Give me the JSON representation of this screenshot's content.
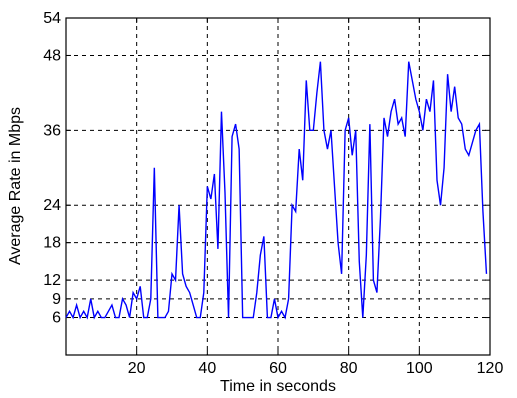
{
  "chart_data": {
    "type": "line",
    "xlabel": "Time in seconds",
    "ylabel": "Average Rate in Mbps",
    "xlim": [
      0,
      120
    ],
    "ylim": [
      0,
      54
    ],
    "xticks": [
      20,
      40,
      60,
      80,
      100,
      120
    ],
    "yticks": [
      6,
      9,
      12,
      18,
      24,
      36,
      48,
      54
    ],
    "grid": true,
    "grid_style": "dashed",
    "series_color": "#0000ff",
    "series": [
      {
        "x": [
          0,
          1,
          2,
          3,
          4,
          5,
          6,
          7,
          8,
          9,
          10,
          11,
          12,
          13,
          14,
          15,
          16,
          17,
          18,
          19,
          20,
          21,
          22,
          23,
          24,
          25,
          26,
          27,
          28,
          29,
          30,
          31,
          32,
          33,
          34,
          35,
          36,
          37,
          38,
          39,
          40,
          41,
          42,
          43,
          44,
          45,
          46,
          47,
          48,
          49,
          50,
          51,
          52,
          53,
          54,
          55,
          56,
          57,
          58,
          59,
          60,
          61,
          62,
          63,
          64,
          65,
          66,
          67,
          68,
          69,
          70,
          71,
          72,
          73,
          74,
          75,
          76,
          77,
          78,
          79,
          80,
          81,
          82,
          83,
          84,
          85,
          86,
          87,
          88,
          89,
          90,
          91,
          92,
          93,
          94,
          95,
          96,
          97,
          98,
          99,
          100,
          101,
          102,
          103,
          104,
          105,
          106,
          107,
          108,
          109,
          110,
          111,
          112,
          113,
          114,
          115,
          116,
          117,
          118,
          119
        ],
        "values": [
          6,
          7,
          6,
          8,
          6,
          7,
          6,
          9,
          6,
          7,
          6,
          6,
          7,
          8,
          6,
          6,
          9,
          8,
          6,
          10,
          9,
          11,
          6,
          6,
          9,
          30,
          6,
          6,
          6,
          7,
          13,
          12,
          24,
          13,
          11,
          10,
          8,
          6,
          6,
          10,
          27,
          25,
          29,
          17,
          39,
          26,
          6,
          35,
          37,
          33,
          6,
          6,
          6,
          6,
          10,
          16,
          19,
          6,
          6,
          9,
          6,
          7,
          6,
          9,
          24,
          23,
          33,
          28,
          44,
          36,
          36,
          42,
          47,
          36,
          33,
          36,
          27,
          18,
          13,
          36,
          38,
          32,
          36,
          15,
          6,
          16,
          37,
          12,
          10,
          22,
          38,
          35,
          39,
          41,
          37,
          38,
          35,
          47,
          44,
          41,
          39,
          36,
          41,
          39,
          44,
          28,
          24,
          30,
          45,
          39,
          43,
          38,
          37,
          33,
          32,
          34,
          36,
          37,
          23,
          13
        ]
      }
    ]
  }
}
